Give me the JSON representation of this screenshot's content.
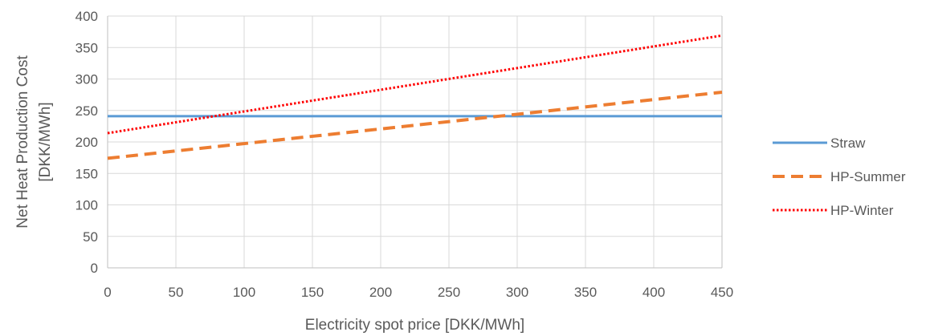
{
  "chart_data": {
    "type": "line",
    "title": "",
    "xlabel": "Electricity spot price [DKK/MWh]",
    "ylabel_lines": [
      "Net Heat Production Cost",
      "[DKK/MWh]"
    ],
    "xlim": [
      0,
      450
    ],
    "ylim": [
      0,
      400
    ],
    "x_ticks": [
      0,
      50,
      100,
      150,
      200,
      250,
      300,
      350,
      400,
      450
    ],
    "y_ticks": [
      0,
      50,
      100,
      150,
      200,
      250,
      300,
      350,
      400
    ],
    "grid": "vertical and horizontal",
    "legend_position": "right",
    "series": [
      {
        "name": "Straw",
        "style": "solid",
        "color": "#5b9bd5",
        "x": [
          0,
          450
        ],
        "y": [
          241,
          241
        ]
      },
      {
        "name": "HP-Summer",
        "style": "dashed",
        "color": "#ed7d31",
        "x": [
          0,
          450
        ],
        "y": [
          174,
          279
        ]
      },
      {
        "name": "HP-Winter",
        "style": "dotted",
        "color": "#ff0000",
        "x": [
          0,
          450
        ],
        "y": [
          214,
          369
        ]
      }
    ]
  }
}
